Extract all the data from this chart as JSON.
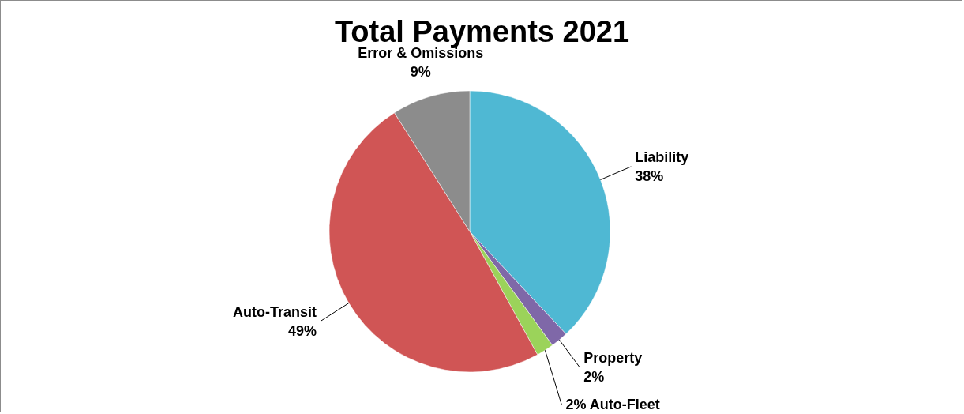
{
  "chart_data": {
    "type": "pie",
    "title": "Total Payments 2021",
    "categories": [
      "Liability",
      "Property",
      "Auto-Fleet",
      "Auto-Transit",
      "Error & Omissions"
    ],
    "values": [
      38,
      2,
      2,
      49,
      9
    ],
    "value_labels": [
      "38%",
      "2%",
      "2%",
      "49%",
      "9%"
    ],
    "colors": [
      "#4fb8d3",
      "#7f68a8",
      "#9bd35a",
      "#d05555",
      "#8c8c8c"
    ]
  }
}
